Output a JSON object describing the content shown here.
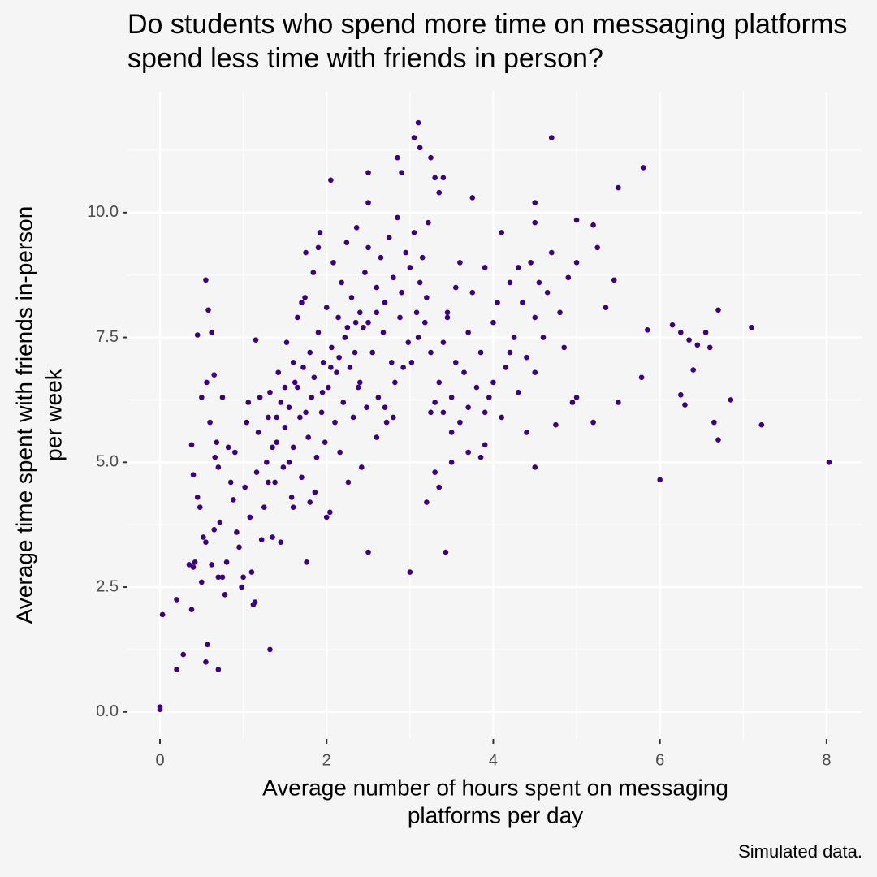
{
  "chart_data": {
    "type": "scatter",
    "title": [
      "Do students who spend more time on messaging platforms",
      "spend less time with friends in person?"
    ],
    "x_label": [
      "Average number of hours spent on messaging",
      "platforms per day"
    ],
    "y_label": [
      "Average time spent with friends in-person",
      "per week"
    ],
    "caption": "Simulated data.",
    "color": "#3b0083",
    "grid": true,
    "minor_grid": true,
    "xlim": [
      -0.39,
      8.43
    ],
    "xticks": [
      0,
      2,
      4,
      6,
      8
    ],
    "ylim": [
      -0.54,
      12.42
    ],
    "yticks": [
      {
        "value": 0,
        "label": "0.0"
      },
      2.5,
      {
        "value": 5,
        "label": "5.0"
      },
      7.5,
      {
        "value": 10,
        "label": "10.0"
      }
    ],
    "x": [
      0,
      0,
      0.03,
      0.2,
      0.2,
      0.28,
      0.38,
      0.55,
      0.57,
      0.7,
      1.32,
      2.5,
      3,
      3.43,
      3.2,
      3.35,
      3.3,
      8.03,
      6.0,
      7.22,
      6.7,
      6.65,
      6.85,
      6.3,
      6.25,
      6.4,
      6.55,
      6.15,
      6.25,
      6.35,
      6.45,
      6.6,
      6.7,
      7.1,
      5.85,
      5.78,
      5.8,
      5.5,
      4.7,
      4.5,
      5.0,
      5.2,
      5.25,
      5.35,
      5.45,
      5.5,
      5.2,
      5.0,
      4.95,
      4.75,
      4.5,
      4.4,
      4.1,
      3.85,
      3.9,
      3.7,
      3.5,
      3.4,
      3.25,
      3.3,
      3.1,
      3.05,
      3.12,
      2.85,
      3.25,
      2.9,
      3.3,
      3.4,
      3.35,
      3.75,
      2.5,
      2.05,
      2.5,
      4.5,
      0.4,
      0.42,
      0.45,
      0.48,
      0.5,
      0.52,
      0.55,
      0.56,
      0.58,
      0.55,
      0.45,
      0.62,
      0.5,
      0.6,
      0.65,
      0.68,
      0.7,
      0.72,
      0.75,
      0.78,
      0.8,
      0.82,
      0.85,
      0.88,
      0.9,
      0.92,
      0.95,
      0.98,
      1.0,
      1.02,
      1.04,
      1.06,
      1.08,
      1.1,
      1.12,
      1.14,
      1.15,
      1.16,
      1.18,
      1.2,
      1.22,
      1.25,
      1.28,
      1.3,
      0.38,
      0.4,
      0.35,
      0.62,
      0.65,
      0.66,
      0.7,
      0.75,
      1.32,
      1.35,
      1.38,
      1.4,
      1.42,
      1.45,
      1.48,
      1.5,
      1.52,
      1.55,
      1.58,
      1.6,
      1.62,
      1.65,
      1.68,
      1.7,
      1.72,
      1.74,
      1.75,
      1.76,
      1.78,
      1.8,
      1.82,
      1.84,
      1.86,
      1.88,
      1.9,
      1.92,
      1.94,
      1.96,
      1.98,
      2.0,
      2.02,
      2.04,
      2.06,
      2.08,
      2.1,
      2.12,
      2.14,
      2.16,
      2.18,
      2.2,
      2.22,
      2.24,
      2.26,
      2.28,
      2.3,
      2.32,
      2.34,
      2.36,
      2.38,
      2.4,
      2.42,
      2.44,
      2.46,
      2.48,
      2.5,
      1.45,
      1.55,
      1.65,
      1.75,
      1.85,
      1.95,
      2.05,
      2.15,
      2.25,
      2.35,
      1.6,
      1.8,
      2.0,
      1.7,
      1.9,
      1.5,
      1.6,
      1.4,
      1.3,
      1.35,
      2.55,
      2.6,
      2.62,
      2.65,
      2.68,
      2.7,
      2.72,
      2.75,
      2.78,
      2.8,
      2.82,
      2.85,
      2.88,
      2.9,
      2.92,
      2.95,
      2.98,
      3.0,
      3.02,
      3.05,
      3.08,
      3.1,
      3.12,
      3.15,
      3.18,
      3.2,
      3.22,
      3.25,
      2.6,
      2.7,
      2.8,
      2.4,
      2.5,
      2.6,
      3.35,
      3.4,
      3.45,
      3.5,
      3.55,
      3.6,
      3.65,
      3.7,
      3.75,
      3.8,
      3.85,
      3.9,
      3.95,
      4.0,
      4.05,
      4.1,
      4.15,
      4.2,
      4.25,
      4.3,
      4.35,
      4.4,
      4.45,
      4.5,
      4.55,
      4.6,
      4.65,
      4.7,
      4.8,
      4.85,
      4.9,
      5.0,
      3.5,
      3.6,
      3.7,
      3.9,
      4.0,
      4.2,
      4.3,
      4.5,
      3.45,
      3.55
    ],
    "values": [
      0.05,
      0.1,
      1.95,
      0.85,
      2.25,
      1.15,
      2.05,
      1.0,
      1.35,
      0.85,
      1.25,
      3.2,
      2.8,
      3.2,
      4.2,
      4.5,
      4.8,
      5.0,
      4.65,
      5.75,
      5.45,
      5.8,
      6.25,
      6.15,
      6.35,
      6.85,
      7.6,
      7.75,
      7.6,
      7.45,
      7.35,
      7.3,
      8.05,
      7.7,
      7.65,
      6.7,
      10.9,
      10.5,
      11.5,
      9.8,
      9.85,
      9.75,
      9.3,
      8.1,
      8.65,
      6.2,
      5.8,
      6.3,
      6.2,
      5.75,
      4.9,
      5.6,
      5.9,
      5.1,
      5.35,
      5.2,
      5.6,
      6.0,
      6.0,
      6.2,
      11.8,
      11.5,
      11.3,
      11.1,
      11.1,
      10.8,
      10.7,
      10.7,
      10.4,
      10.3,
      10.8,
      10.65,
      10.2,
      10.2,
      2.9,
      3.0,
      4.3,
      4.1,
      2.6,
      3.5,
      3.4,
      6.6,
      8.05,
      8.65,
      7.55,
      7.6,
      6.3,
      5.8,
      6.75,
      5.4,
      4.9,
      3.8,
      2.7,
      2.35,
      3.0,
      5.3,
      4.6,
      4.25,
      5.2,
      3.6,
      3.3,
      2.5,
      2.7,
      4.5,
      5.8,
      6.2,
      3.9,
      2.8,
      2.15,
      2.2,
      7.45,
      4.8,
      5.6,
      6.3,
      3.45,
      4.1,
      5.0,
      5.9,
      5.35,
      4.75,
      2.95,
      2.95,
      3.65,
      5.1,
      2.7,
      6.3,
      6.4,
      3.5,
      4.6,
      5.4,
      6.8,
      3.4,
      4.9,
      5.7,
      7.4,
      6.1,
      4.3,
      5.3,
      6.6,
      7.9,
      5.9,
      4.7,
      6.9,
      8.3,
      9.2,
      3.0,
      5.5,
      7.2,
      6.3,
      8.8,
      4.4,
      5.1,
      7.6,
      9.6,
      6.0,
      7.0,
      5.4,
      8.1,
      6.5,
      4.0,
      7.3,
      9.0,
      5.8,
      6.8,
      7.9,
      5.2,
      8.6,
      6.2,
      7.5,
      9.4,
      4.6,
      6.9,
      8.3,
      5.9,
      7.2,
      9.7,
      6.5,
      8.0,
      4.9,
      7.7,
      8.8,
      6.1,
      9.3,
      6.2,
      5.0,
      6.5,
      6.0,
      6.7,
      6.4,
      6.9,
      7.1,
      7.7,
      7.8,
      4.1,
      4.2,
      3.9,
      8.2,
      9.3,
      6.5,
      7.0,
      5.9,
      4.6,
      5.3,
      7.2,
      8.5,
      6.3,
      9.1,
      7.6,
      8.2,
      5.8,
      9.5,
      7.0,
      8.7,
      6.6,
      9.9,
      7.9,
      8.4,
      6.9,
      9.2,
      7.4,
      8.9,
      7.0,
      9.6,
      8.0,
      7.5,
      8.6,
      9.1,
      7.8,
      8.3,
      9.8,
      7.2,
      5.5,
      6.1,
      5.9,
      6.6,
      7.8,
      8.0,
      6.6,
      7.4,
      8.0,
      6.3,
      7.0,
      9.0,
      6.8,
      7.6,
      8.4,
      6.5,
      7.2,
      8.9,
      6.3,
      7.8,
      8.2,
      9.6,
      6.9,
      8.6,
      7.5,
      6.4,
      8.2,
      7.1,
      9.0,
      6.8,
      8.6,
      7.5,
      8.4,
      9.2,
      8.0,
      7.3,
      8.7,
      9.0,
      5.0,
      5.8,
      6.1,
      6.0,
      6.6,
      7.2,
      8.9,
      7.9,
      7.9,
      8.5
    ]
  }
}
